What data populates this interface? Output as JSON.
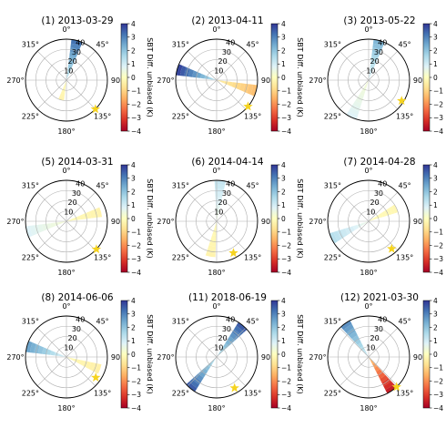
{
  "colors": {
    "star": "#f5d320",
    "grid": "#b0b0b0",
    "frame": "#000000",
    "colormap_RdYlBu": [
      "#a50026",
      "#d73027",
      "#f46d43",
      "#fdae61",
      "#fee090",
      "#ffffbf",
      "#e0f3f8",
      "#abd9e9",
      "#74add1",
      "#4575b4",
      "#313695"
    ]
  },
  "chart_data": [
    {
      "type": "polar-bar",
      "title": "(1) 2013-03-29",
      "r_ticks": [
        10,
        20,
        30,
        40
      ],
      "theta_ticks": [
        "0°",
        "45°",
        "90°",
        "135°",
        "180°",
        "225°",
        "270°",
        "315°"
      ],
      "colorbar": {
        "label": "SBT Diff. unbiased (K)",
        "range": [
          -4,
          4
        ],
        "ticks": [
          "4",
          "3",
          "2",
          "1",
          "0",
          "−1",
          "−2",
          "−3",
          "−4"
        ]
      },
      "wedges": [
        {
          "angle_deg": 15,
          "r": 40,
          "value": 3.2
        },
        {
          "angle_deg": 195,
          "r": 20,
          "value": -0.3
        }
      ],
      "star_angle_deg": 135,
      "star_r": 40
    },
    {
      "type": "polar-bar",
      "title": "(2) 2013-04-11",
      "r_ticks": [
        10,
        20,
        30,
        40
      ],
      "theta_ticks": [
        "0°",
        "45°",
        "90°",
        "135°",
        "180°",
        "225°",
        "270°",
        "315°"
      ],
      "colorbar": {
        "label": "SBT Diff. unbiased (K)",
        "range": [
          -4,
          4
        ],
        "ticks": [
          "4",
          "3",
          "2",
          "1",
          "0",
          "−1",
          "−2",
          "−3",
          "−4"
        ]
      },
      "wedges": [
        {
          "angle_deg": 285,
          "r": 40,
          "value": 3.8
        },
        {
          "angle_deg": 105,
          "r": 40,
          "value": -1.3
        }
      ],
      "star_angle_deg": 130,
      "star_r": 40
    },
    {
      "type": "polar-bar",
      "title": "(3) 2013-05-22",
      "r_ticks": [
        10,
        20,
        30,
        40
      ],
      "theta_ticks": [
        "0°",
        "45°",
        "90°",
        "135°",
        "180°",
        "225°",
        "270°",
        "315°"
      ],
      "colorbar": {
        "label": "SBT Diff. unbiased (K)",
        "range": [
          -4,
          4
        ],
        "ticks": [
          "4",
          "3",
          "2",
          "1",
          "0",
          "−1",
          "−2",
          "−3",
          "−4"
        ]
      },
      "wedges": [
        {
          "angle_deg": 15,
          "r": 40,
          "value": 2.2
        },
        {
          "angle_deg": 205,
          "r": 40,
          "value": 0.8
        }
      ],
      "star_angle_deg": 122,
      "star_r": 38
    },
    {
      "type": "polar-bar",
      "title": "(5) 2014-03-31",
      "r_ticks": [
        10,
        20,
        30,
        40
      ],
      "theta_ticks": [
        "0°",
        "45°",
        "90°",
        "135°",
        "180°",
        "225°",
        "270°",
        "315°"
      ],
      "colorbar": {
        "label": "SBT Diff. unbiased (K)",
        "range": [
          -4,
          4
        ],
        "ticks": [
          "4",
          "3",
          "2",
          "1",
          "0",
          "−1",
          "−2",
          "−3",
          "−4"
        ]
      },
      "wedges": [
        {
          "angle_deg": 75,
          "r": 35,
          "value": -0.3
        },
        {
          "angle_deg": 255,
          "r": 40,
          "value": 0.8
        }
      ],
      "star_angle_deg": 133,
      "star_r": 40
    },
    {
      "type": "polar-bar",
      "title": "(6) 2014-04-14",
      "r_ticks": [
        10,
        20,
        30,
        40
      ],
      "theta_ticks": [
        "0°",
        "45°",
        "90°",
        "135°",
        "180°",
        "225°",
        "270°",
        "315°"
      ],
      "colorbar": {
        "label": "SBT Diff. unbiased (K)",
        "range": [
          -4,
          4
        ],
        "ticks": [
          "4",
          "3",
          "2",
          "1",
          "0",
          "−1",
          "−2",
          "−3",
          "−4"
        ]
      },
      "wedges": [
        {
          "angle_deg": 5,
          "r": 40,
          "value": 1.2
        },
        {
          "angle_deg": 190,
          "r": 35,
          "value": -0.3
        }
      ],
      "star_angle_deg": 152,
      "star_r": 35
    },
    {
      "type": "polar-bar",
      "title": "(7) 2014-04-28",
      "r_ticks": [
        10,
        20,
        30,
        40
      ],
      "theta_ticks": [
        "0°",
        "45°",
        "90°",
        "135°",
        "180°",
        "225°",
        "270°",
        "315°"
      ],
      "colorbar": {
        "label": "SBT Diff. unbiased (K)",
        "range": [
          -4,
          4
        ],
        "ticks": [
          "4",
          "3",
          "2",
          "1",
          "0",
          "−1",
          "−2",
          "−3",
          "−4"
        ]
      },
      "wedges": [
        {
          "angle_deg": 65,
          "r": 30,
          "value": -0.2
        },
        {
          "angle_deg": 245,
          "r": 40,
          "value": 1.4
        }
      ],
      "star_angle_deg": 140,
      "star_r": 35
    },
    {
      "type": "polar-bar",
      "title": "(8) 2014-06-06",
      "r_ticks": [
        10,
        20,
        30,
        40
      ],
      "theta_ticks": [
        "0°",
        "45°",
        "90°",
        "135°",
        "180°",
        "225°",
        "270°",
        "315°"
      ],
      "colorbar": {
        "label": "SBT Diff. unbiased (K)",
        "range": [
          -4,
          4
        ],
        "ticks": [
          "4",
          "3",
          "2",
          "1",
          "0",
          "−1",
          "−2",
          "−3",
          "−4"
        ]
      },
      "wedges": [
        {
          "angle_deg": 285,
          "r": 40,
          "value": 2.5
        },
        {
          "angle_deg": 110,
          "r": 35,
          "value": -0.4
        }
      ],
      "star_angle_deg": 125,
      "star_r": 35
    },
    {
      "type": "polar-bar",
      "title": "(11) 2018-06-19",
      "r_ticks": [
        10,
        20,
        30,
        40
      ],
      "theta_ticks": [
        "0°",
        "45°",
        "90°",
        "135°",
        "180°",
        "225°",
        "270°",
        "315°"
      ],
      "colorbar": {
        "label": "SBT Diff. unbiased (K)",
        "range": [
          -4,
          4
        ],
        "ticks": [
          "4",
          "3",
          "2",
          "1",
          "0",
          "−1",
          "−2",
          "−3",
          "−4"
        ]
      },
      "wedges": [
        {
          "angle_deg": 40,
          "r": 40,
          "value": 3.5
        },
        {
          "angle_deg": 220,
          "r": 40,
          "value": 3.5
        }
      ],
      "star_angle_deg": 150,
      "star_r": 35
    },
    {
      "type": "polar-bar",
      "title": "(12) 2021-03-30",
      "r_ticks": [
        10,
        20,
        30,
        40
      ],
      "theta_ticks": [
        "0°",
        "45°",
        "90°",
        "135°",
        "180°",
        "225°",
        "270°",
        "315°"
      ],
      "colorbar": {
        "label": "SBT Diff. unbiased (K)",
        "range": [
          -4,
          4
        ],
        "ticks": [
          "4",
          "3",
          "2",
          "1",
          "0",
          "−1",
          "−2",
          "−3",
          "−4"
        ]
      },
      "wedges": [
        {
          "angle_deg": 325,
          "r": 40,
          "value": 2.8
        },
        {
          "angle_deg": 145,
          "r": 40,
          "value": -3.5
        }
      ],
      "star_angle_deg": 137,
      "star_r": 40
    }
  ]
}
